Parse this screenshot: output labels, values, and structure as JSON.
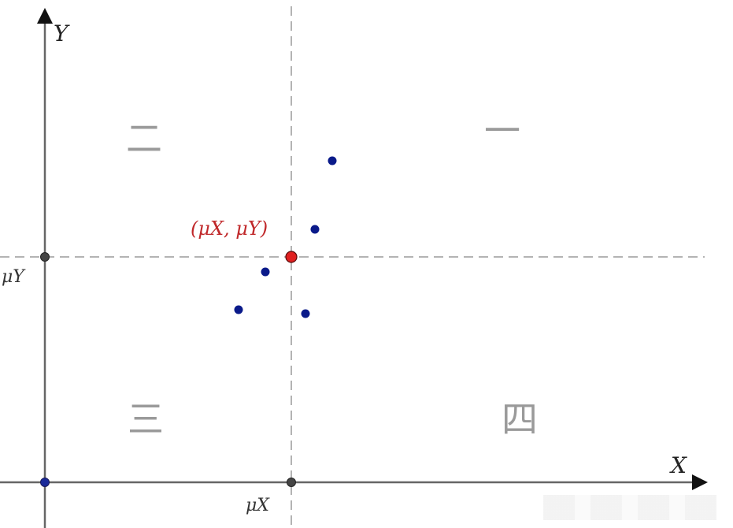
{
  "axes": {
    "x_label": "X",
    "y_label": "Y"
  },
  "quadrants": {
    "q1": "一",
    "q2": "二",
    "q3": "三",
    "q4": "四"
  },
  "mean": {
    "x_label": "μX",
    "y_label": "μY",
    "point_label": "(μX, μY)",
    "point_color": "#e02020"
  },
  "colors": {
    "sample_point": "#0a1a8a",
    "axis_marker": "#444444",
    "mean_label": "#c0282a"
  },
  "sample_points_count_visible": 5
}
